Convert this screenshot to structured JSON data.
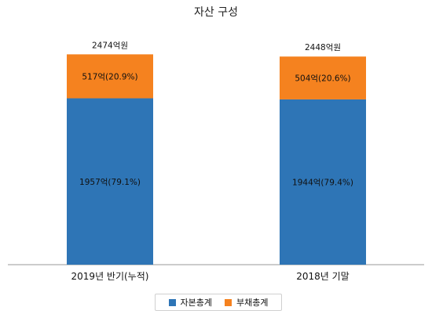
{
  "chart_data": {
    "type": "bar",
    "stacked": true,
    "title": "자산 구성",
    "categories": [
      "2019년 반기(누적)",
      "2018년 기말"
    ],
    "totals": [
      2474,
      2448
    ],
    "total_labels": [
      "2474억원",
      "2448억원"
    ],
    "series": [
      {
        "name": "자본총계",
        "color": "#2e75b6",
        "values": [
          1957,
          1944
        ],
        "labels": [
          "1957억(79.1%)",
          "1944억(79.4%)"
        ]
      },
      {
        "name": "부채총계",
        "color": "#f5821f",
        "values": [
          517,
          504
        ],
        "labels": [
          "517억(20.9%)",
          "504억(20.6%)"
        ]
      }
    ],
    "ylim": [
      0,
      2800
    ],
    "grid": false,
    "legend_position": "bottom"
  }
}
